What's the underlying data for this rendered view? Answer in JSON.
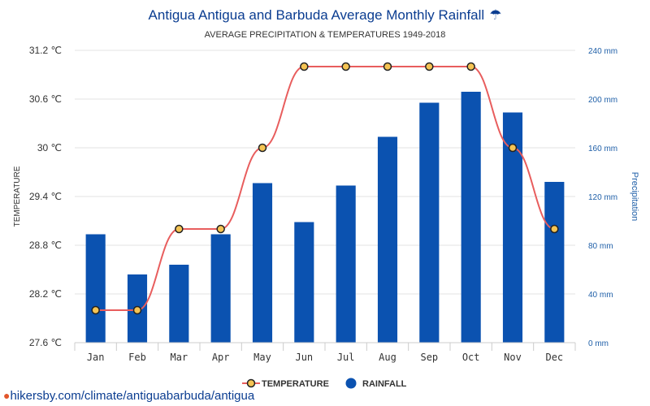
{
  "chart_data": {
    "type": "bar+line",
    "title": "Antigua Antigua and Barbuda Average Monthly Rainfall",
    "title_icon": "umbrella-icon",
    "subtitle": "AVERAGE PRECIPITATION & TEMPERATURES 1949-2018",
    "categories": [
      "Jan",
      "Feb",
      "Mar",
      "Apr",
      "May",
      "Jun",
      "Jul",
      "Aug",
      "Sep",
      "Oct",
      "Nov",
      "Dec"
    ],
    "series": [
      {
        "name": "TEMPERATURE",
        "kind": "line",
        "axis": "left",
        "color": "#e85d5d",
        "marker_fill": "#f5c453",
        "values": [
          28,
          28,
          29,
          29,
          30,
          31,
          31,
          31,
          31,
          31,
          30,
          29
        ]
      },
      {
        "name": "RAINFALL",
        "kind": "bar",
        "axis": "right",
        "color": "#0b52b0",
        "values": [
          89,
          56,
          64,
          89,
          131,
          99,
          129,
          169,
          197,
          206,
          189,
          132
        ]
      }
    ],
    "y_left": {
      "label": "TEMPERATURE",
      "range": [
        27.6,
        31.2
      ],
      "ticks": [
        "27.6 ℃",
        "28.2 ℃",
        "28.8 ℃",
        "29.4 ℃",
        "30 ℃",
        "30.6 ℃",
        "31.2 ℃"
      ],
      "tick_values": [
        27.6,
        28.2,
        28.8,
        29.4,
        30,
        30.6,
        31.2
      ]
    },
    "y_right": {
      "label": "Precipitation",
      "range": [
        0,
        240
      ],
      "ticks": [
        "0 mm",
        "40 mm",
        "80 mm",
        "120 mm",
        "160 mm",
        "200 mm",
        "240 mm"
      ],
      "tick_values": [
        0,
        40,
        80,
        120,
        160,
        200,
        240
      ]
    },
    "grid": true,
    "legend_position": "bottom-center"
  },
  "source_text": "hikersby.com/climate/antiguabarbuda/antigua",
  "source_icon": "location-pin-icon"
}
